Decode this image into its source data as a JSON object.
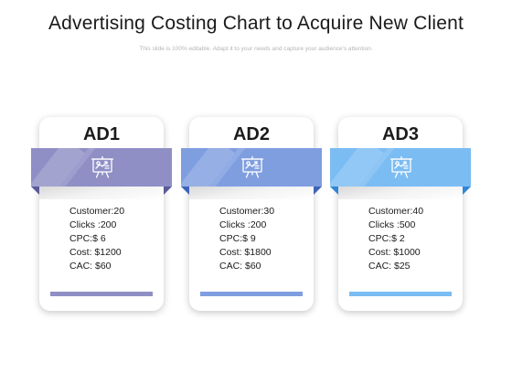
{
  "slide": {
    "title": "Advertising Costing Chart to Acquire New Client",
    "subtitle": "This slide is 100% editable. Adapt it to your needs and capture your audience's attention."
  },
  "cards": [
    {
      "name": "AD1",
      "icon": "presentation-board-icon",
      "color": "#8f8fc6",
      "fold_color": "#5a5a9a",
      "metrics": [
        "Customer:20",
        "Clicks :200",
        "CPC:$ 6",
        "Cost: $1200",
        "CAC: $60"
      ]
    },
    {
      "name": "AD2",
      "icon": "presentation-board-icon",
      "color": "#7f9ee0",
      "fold_color": "#3f63b8",
      "metrics": [
        "Customer:30",
        "Clicks :200",
        "CPC:$ 9",
        "Cost: $1800",
        "CAC: $60"
      ]
    },
    {
      "name": "AD3",
      "icon": "presentation-board-icon",
      "color": "#7bbcf3",
      "fold_color": "#2f86d6",
      "metrics": [
        "Customer:40",
        "Clicks :500",
        "CPC:$ 2",
        "Cost: $1000",
        "CAC: $25"
      ]
    }
  ]
}
